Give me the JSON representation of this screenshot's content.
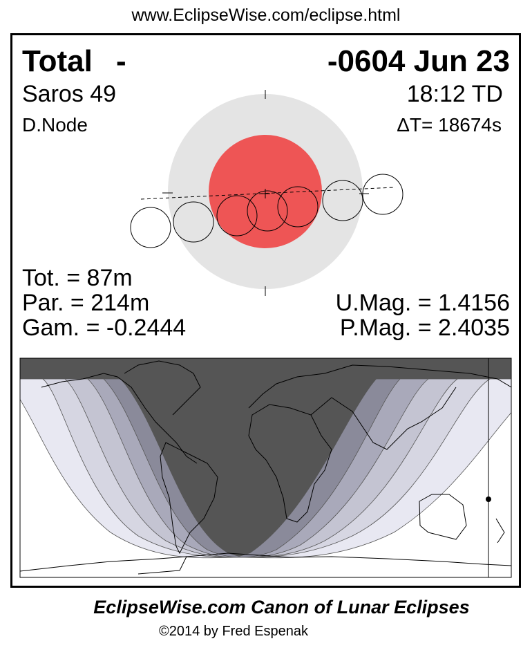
{
  "header_url": "www.EclipseWise.com/eclipse.html",
  "eclipse": {
    "type": "Total",
    "type_suffix": "-",
    "date": "-0604 Jun 23",
    "saros": "Saros  49",
    "time": "18:12 TD",
    "node": "D.Node",
    "delta_t": "ΔT=  18674s",
    "tot": "Tot. =  87m",
    "par": "Par. = 214m",
    "gam": "Gam. = -0.2444",
    "umag": "U.Mag. = 1.4156",
    "pmag": "P.Mag. = 2.4035"
  },
  "colors": {
    "umbra": "#ee5555",
    "penumbra": "#e4e4e4",
    "night": "#555555"
  },
  "footer": {
    "title": "EclipseWise.com Canon of Lunar Eclipses",
    "copyright": "©2014 by Fred Espenak"
  }
}
